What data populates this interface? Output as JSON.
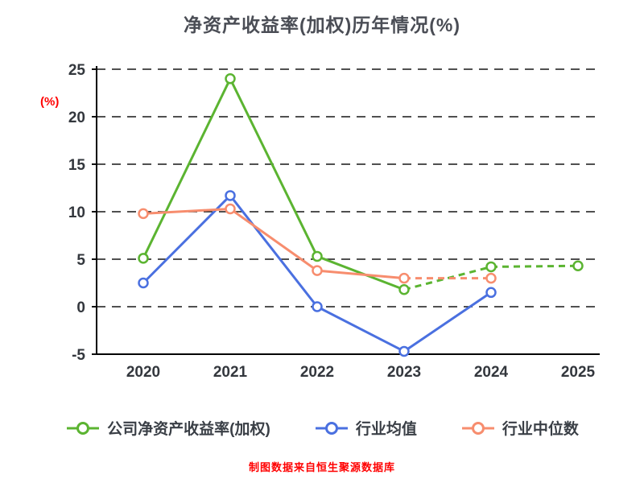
{
  "title": "净资产收益率(加权)历年情况(%)",
  "y_axis_label": "(%)",
  "footer": "制图数据来自恒生聚源数据库",
  "colors": {
    "company_green": "#5bb431",
    "industry_mean_blue": "#4a70e0",
    "industry_median_orange": "#f78d6e",
    "title_text": "#4a4d55",
    "accent_red": "#ff0000",
    "axis_text": "#33373d",
    "grid_line": "#161616"
  },
  "chart_data": {
    "type": "line",
    "x": [
      2020,
      2021,
      2022,
      2023,
      2024,
      2025
    ],
    "ylim": [
      -5,
      25
    ],
    "yticks": [
      25,
      20,
      15,
      10,
      5,
      0,
      -5
    ],
    "grid": "dashed horizontal lines",
    "legend_position": "bottom",
    "title": "净资产收益率(加权)历年情况(%)",
    "ylabel": "(%)",
    "series": [
      {
        "name": "公司净资产收益率(加权)",
        "color": "#5bb431",
        "marker": "hollow-circle",
        "values": [
          5.1,
          24.0,
          5.3,
          1.8,
          4.2,
          4.3
        ],
        "dash_from": 3
      },
      {
        "name": "行业均值",
        "color": "#4a70e0",
        "marker": "hollow-circle",
        "values": [
          2.5,
          11.7,
          0.0,
          -4.7,
          1.5,
          null
        ],
        "dash_from": null
      },
      {
        "name": "行业中位数",
        "color": "#f78d6e",
        "marker": "hollow-circle",
        "values": [
          9.8,
          10.3,
          3.8,
          3.0,
          3.0,
          null
        ],
        "dash_from": 3
      }
    ]
  }
}
